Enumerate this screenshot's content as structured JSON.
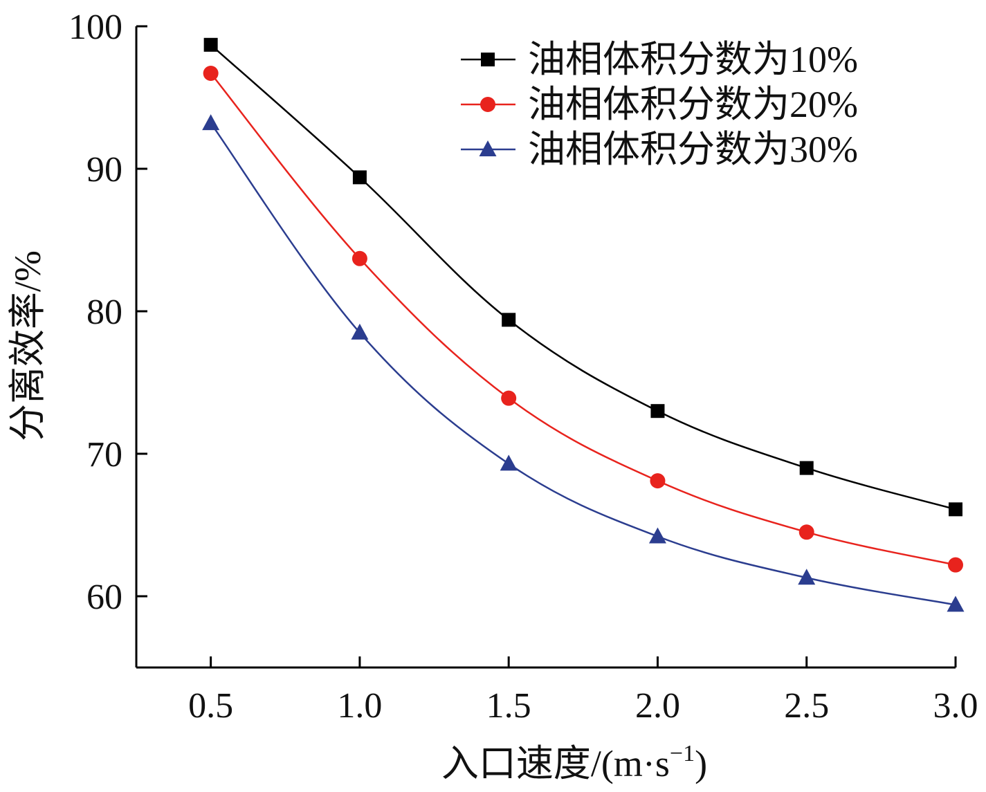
{
  "chart_data": {
    "type": "line",
    "xlabel": "入口速度/(m·s",
    "xlabel_sup": "−1",
    "xlabel_close": ")",
    "ylabel": "分离效率/%",
    "x": [
      0.5,
      1.0,
      1.5,
      2.0,
      2.5,
      3.0
    ],
    "x_tick_labels": [
      "0.5",
      "1.0",
      "1.5",
      "2.0",
      "2.5",
      "3.0"
    ],
    "y_ticks": [
      60,
      70,
      80,
      90,
      100
    ],
    "y_tick_labels": [
      "60",
      "70",
      "80",
      "90",
      "100"
    ],
    "xlim": [
      0.25,
      3.0
    ],
    "ylim": [
      55,
      100
    ],
    "legend_position": "top-right",
    "grid": false,
    "series": [
      {
        "name": "油相体积分数为10%",
        "color": "#000000",
        "marker": "square",
        "values": [
          98.7,
          89.4,
          79.4,
          73.0,
          69.0,
          66.1
        ]
      },
      {
        "name": "油相体积分数为20%",
        "color": "#e8231d",
        "marker": "circle",
        "values": [
          96.7,
          83.7,
          73.9,
          68.1,
          64.5,
          62.2
        ]
      },
      {
        "name": "油相体积分数为30%",
        "color": "#2b3d8f",
        "marker": "triangle",
        "values": [
          93.2,
          78.5,
          69.3,
          64.2,
          61.3,
          59.4
        ]
      }
    ]
  }
}
